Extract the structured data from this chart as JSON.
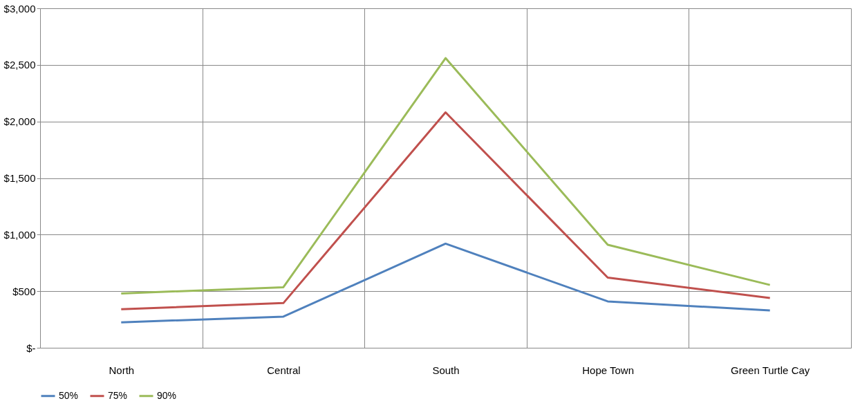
{
  "chart_data": {
    "type": "line",
    "categories": [
      "North",
      "Central",
      "South",
      "Hope Town",
      "Green Turtle Cay"
    ],
    "series": [
      {
        "name": "50%",
        "color": "#4f81bd",
        "values": [
          225,
          275,
          920,
          410,
          330
        ]
      },
      {
        "name": "75%",
        "color": "#c0504d",
        "values": [
          340,
          395,
          2080,
          620,
          440
        ]
      },
      {
        "name": "90%",
        "color": "#9bbb59",
        "values": [
          480,
          535,
          2560,
          910,
          555
        ]
      }
    ],
    "ylim": [
      0,
      3000
    ],
    "yticks": [
      {
        "value": 0,
        "label": "$-"
      },
      {
        "value": 500,
        "label": "$500"
      },
      {
        "value": 1000,
        "label": "$1,000"
      },
      {
        "value": 1500,
        "label": "$1,500"
      },
      {
        "value": 2000,
        "label": "$2,000"
      },
      {
        "value": 2500,
        "label": "$2,500"
      },
      {
        "value": 3000,
        "label": "$3,000"
      }
    ],
    "grid": true,
    "legend": "bottom",
    "marker": "none",
    "line_style": "solid"
  }
}
